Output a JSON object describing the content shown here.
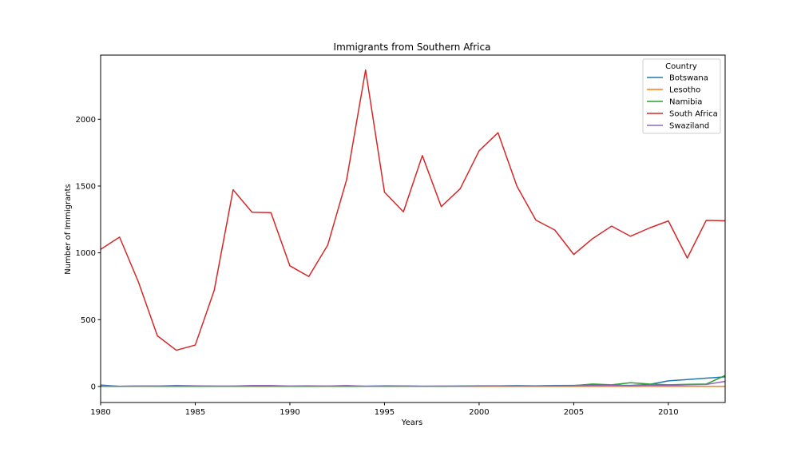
{
  "chart_data": {
    "type": "line",
    "title": "Immigrants from Southern Africa",
    "xlabel": "Years",
    "ylabel": "Number of Immigrants",
    "xlim": [
      1980,
      2013
    ],
    "ylim": [
      -120,
      2480
    ],
    "xticks": [
      1980,
      1985,
      1990,
      1995,
      2000,
      2005,
      2010
    ],
    "yticks": [
      0,
      500,
      1000,
      1500,
      2000
    ],
    "legend_title": "Country",
    "legend_position": "top-right",
    "grid": false,
    "x": [
      1980,
      1981,
      1982,
      1983,
      1984,
      1985,
      1986,
      1987,
      1988,
      1989,
      1990,
      1991,
      1992,
      1993,
      1994,
      1995,
      1996,
      1997,
      1998,
      1999,
      2000,
      2001,
      2002,
      2003,
      2004,
      2005,
      2006,
      2007,
      2008,
      2009,
      2010,
      2011,
      2012,
      2013
    ],
    "series": [
      {
        "name": "Botswana",
        "color": "#1f77b4",
        "values": [
          10,
          1,
          3,
          3,
          7,
          4,
          2,
          2,
          5,
          4,
          2,
          3,
          2,
          3,
          2,
          5,
          4,
          2,
          2,
          3,
          5,
          5,
          6,
          5,
          7,
          8,
          12,
          10,
          8,
          15,
          42,
          52,
          62,
          72
        ]
      },
      {
        "name": "Lesotho",
        "color": "#ff7f0e",
        "values": [
          1,
          1,
          1,
          1,
          1,
          1,
          1,
          1,
          1,
          1,
          1,
          1,
          1,
          1,
          1,
          1,
          1,
          1,
          1,
          1,
          1,
          1,
          1,
          1,
          1,
          1,
          1,
          1,
          1,
          1,
          1,
          1,
          1,
          1
        ]
      },
      {
        "name": "Namibia",
        "color": "#2ca02c",
        "values": [
          1,
          0,
          2,
          1,
          1,
          1,
          1,
          1,
          2,
          2,
          1,
          1,
          2,
          1,
          1,
          1,
          2,
          1,
          1,
          2,
          4,
          4,
          4,
          4,
          5,
          6,
          18,
          12,
          28,
          18,
          12,
          16,
          18,
          82
        ]
      },
      {
        "name": "South Africa",
        "color": "#d62728",
        "values": [
          1026,
          1118,
          781,
          379,
          271,
          310,
          718,
          1472,
          1304,
          1301,
          903,
          823,
          1058,
          1548,
          2369,
          1454,
          1307,
          1728,
          1346,
          1480,
          1764,
          1899,
          1498,
          1245,
          1171,
          988,
          1107,
          1200,
          1124,
          1186,
          1239,
          961,
          1243,
          1240
        ]
      },
      {
        "name": "Swaziland",
        "color": "#9467bd",
        "values": [
          4,
          2,
          3,
          3,
          5,
          5,
          3,
          3,
          7,
          7,
          3,
          5,
          3,
          7,
          2,
          3,
          3,
          2,
          3,
          2,
          3,
          4,
          3,
          3,
          4,
          5,
          7,
          8,
          5,
          10,
          8,
          12,
          15,
          38
        ]
      }
    ]
  }
}
